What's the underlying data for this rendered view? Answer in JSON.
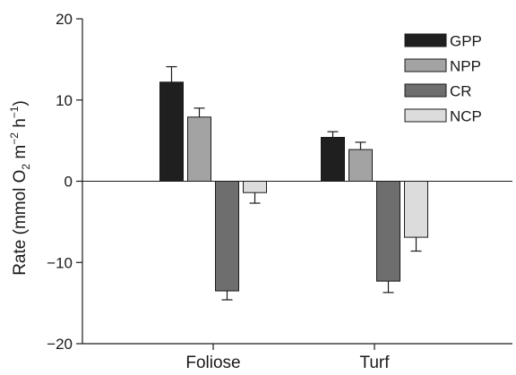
{
  "chart_data": {
    "type": "bar",
    "categories": [
      "Foliose",
      "Turf"
    ],
    "series": [
      {
        "name": "GPP",
        "values": [
          12.2,
          5.4
        ],
        "errors": [
          1.9,
          0.7
        ],
        "color": "#1f1f1f"
      },
      {
        "name": "NPP",
        "values": [
          7.9,
          3.9
        ],
        "errors": [
          1.1,
          0.9
        ],
        "color": "#a3a3a3"
      },
      {
        "name": "CR",
        "values": [
          -13.5,
          -12.3
        ],
        "errors": [
          1.1,
          1.4
        ],
        "color": "#6e6e6e"
      },
      {
        "name": "NCP",
        "values": [
          -1.4,
          -6.9
        ],
        "errors": [
          1.3,
          1.7
        ],
        "color": "#dcdcdc"
      }
    ],
    "ylim": [
      -20,
      20
    ],
    "yticks": [
      20,
      10,
      0,
      -10,
      -20
    ],
    "ytick_labels": [
      "20",
      "10",
      "0",
      "−10",
      "−20"
    ],
    "ylabel": {
      "pre": "Rate (mmol O",
      "sub": "2",
      "mid": " m",
      "sup1": "−2",
      "mid2": " h",
      "sup2": "−1",
      "post": ")"
    },
    "xlabel": "",
    "grid": false,
    "legend_position": "top-right"
  }
}
